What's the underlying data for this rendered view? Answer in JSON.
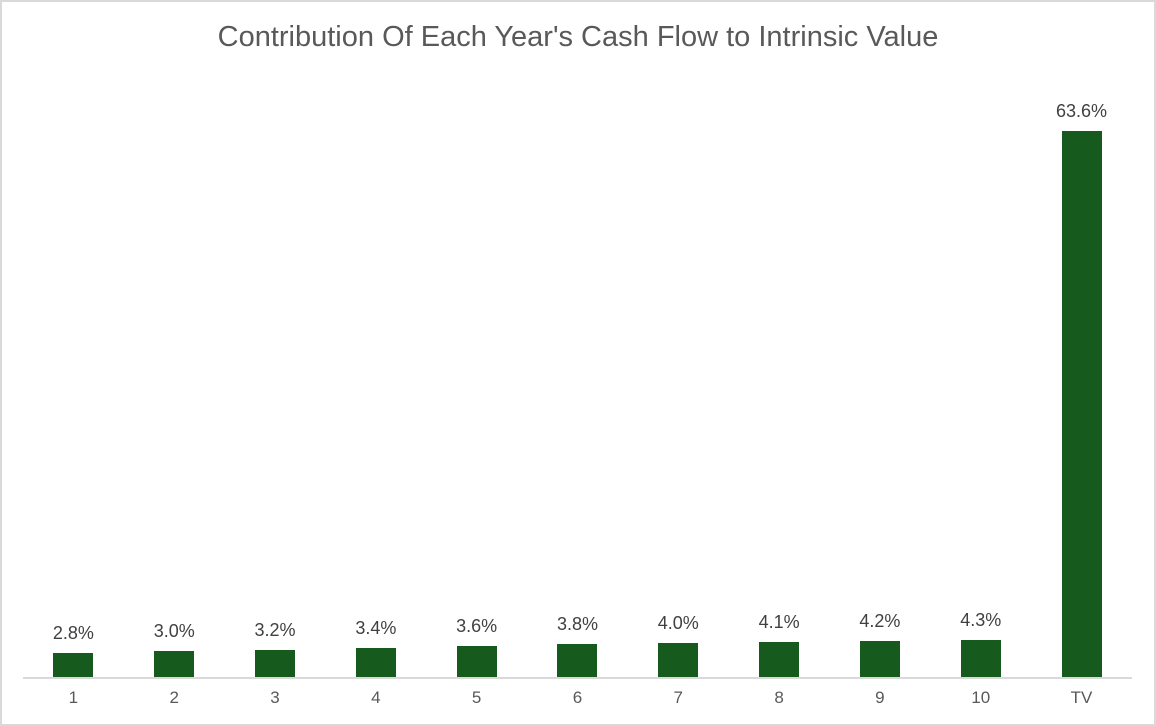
{
  "chart_data": {
    "type": "bar",
    "title": "Contribution Of Each Year's Cash Flow to Intrinsic Value",
    "categories": [
      "1",
      "2",
      "3",
      "4",
      "5",
      "6",
      "7",
      "8",
      "9",
      "10",
      "TV"
    ],
    "values": [
      2.8,
      3.0,
      3.2,
      3.4,
      3.6,
      3.8,
      4.0,
      4.1,
      4.2,
      4.3,
      63.6
    ],
    "value_labels": [
      "2.8%",
      "3.0%",
      "3.2%",
      "3.4%",
      "3.6%",
      "3.8%",
      "4.0%",
      "4.1%",
      "4.2%",
      "4.3%",
      "63.6%"
    ],
    "ylabel": "",
    "xlabel": "",
    "ylim": [
      0,
      70
    ],
    "grid": false,
    "legend": false,
    "colors": {
      "bar": "#165A1E",
      "axis": "#D9D9D9",
      "title": "#595959",
      "value_label": "#404040",
      "tick_label": "#595959",
      "border": "#D9D9D9"
    }
  }
}
